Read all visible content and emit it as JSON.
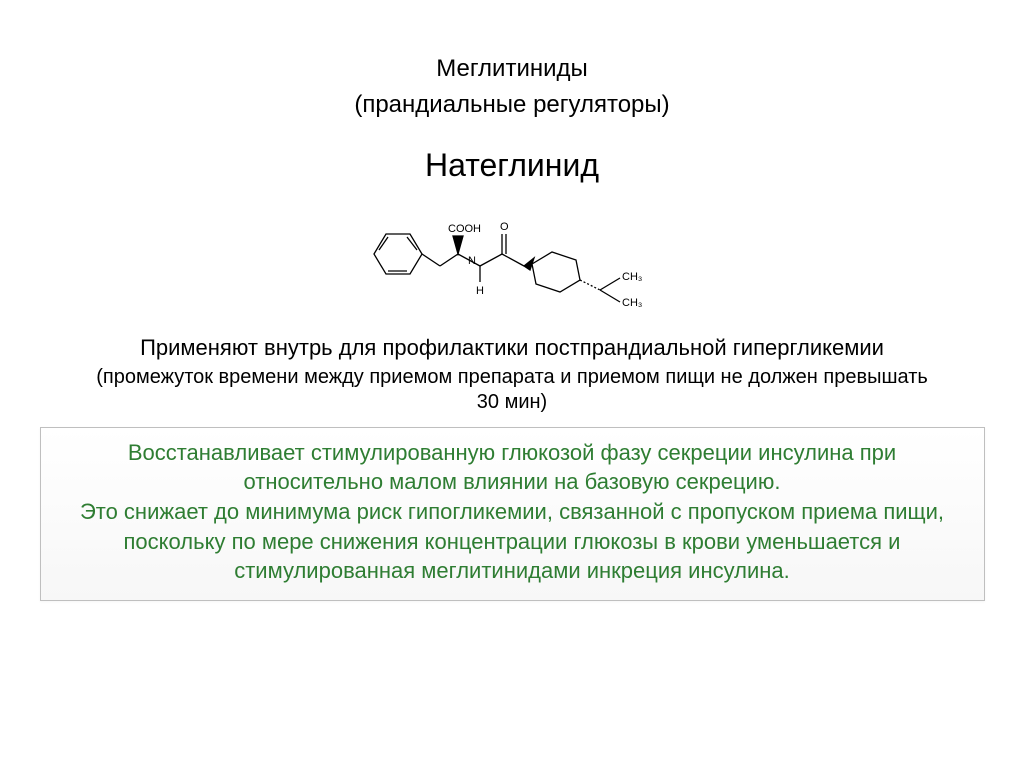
{
  "header": {
    "title1": "Меглитиниды",
    "title2": "(прандиальные регуляторы)"
  },
  "drug": {
    "name": "Натеглинид",
    "structure_labels": {
      "cooh": "COOH",
      "o": "O",
      "h": "H",
      "n": "N",
      "ch3_1": "CH₃",
      "ch3_2": "CH₃"
    }
  },
  "usage": {
    "main": "Применяют внутрь для профилактики постпрандиальной гипергликемии",
    "note": "(промежуток времени между приемом препарата и приемом пищи не должен превышать 30 мин)"
  },
  "infobox": {
    "text": "Восстанавливает стимулированную глюкозой фазу секреции инсулина при относительно малом влиянии на базовую секрецию.\nЭто снижает до минимума риск гипогликемии, связанной с пропуском приема пищи,\nпоскольку по мере снижения концентрации глюкозы в крови уменьшается и стимулированная меглитинидами инкреция инсулина."
  },
  "colors": {
    "text_black": "#000000",
    "text_green": "#2e7d32",
    "box_border": "#bfbfbf",
    "background": "#ffffff"
  },
  "fonts": {
    "heading_size_pt": 18,
    "drugname_size_pt": 24,
    "body_size_pt": 16,
    "infobox_size_pt": 16
  }
}
